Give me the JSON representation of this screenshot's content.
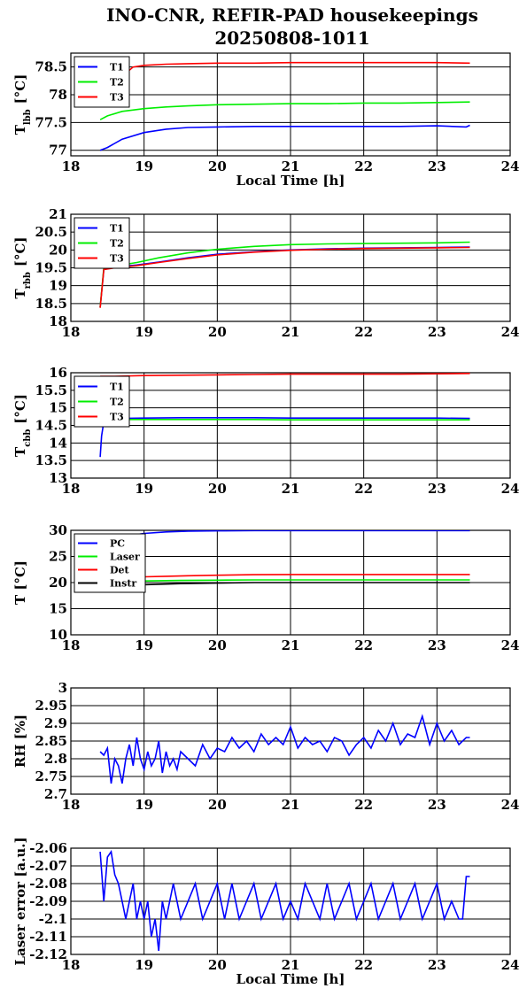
{
  "figure": {
    "title_line1": "INO-CNR, REFIR-PAD housekeepings",
    "title_line2": "20250808-1011"
  },
  "chart_data": [
    {
      "id": "tlbb",
      "type": "line",
      "title": "",
      "xlabel": "Local Time [h]",
      "ylabel": "T",
      "ylabel_sub": "lbb",
      "ylabel_unit": "[°C]",
      "xlim": [
        18,
        24
      ],
      "ylim": [
        76.9,
        78.75
      ],
      "xticks": [
        18,
        19,
        20,
        21,
        22,
        23,
        24
      ],
      "yticks": [
        77,
        77.5,
        78,
        78.5
      ],
      "ytick_labels": [
        "77",
        "77.5",
        "78",
        "78.5"
      ],
      "grid": true,
      "legend_position": "top-left",
      "series": [
        {
          "name": "T1",
          "color": "#0000ff",
          "x": [
            18.4,
            18.5,
            18.7,
            19.0,
            19.3,
            19.6,
            20.0,
            20.5,
            21.0,
            21.5,
            22.0,
            22.5,
            23.0,
            23.4,
            23.45
          ],
          "y": [
            77.0,
            77.05,
            77.2,
            77.32,
            77.38,
            77.41,
            77.42,
            77.43,
            77.43,
            77.43,
            77.43,
            77.43,
            77.44,
            77.42,
            77.45
          ]
        },
        {
          "name": "T2",
          "color": "#00ee00",
          "x": [
            18.4,
            18.5,
            18.7,
            19.0,
            19.3,
            19.6,
            20.0,
            20.5,
            21.0,
            21.5,
            22.0,
            22.5,
            23.0,
            23.45
          ],
          "y": [
            77.55,
            77.62,
            77.7,
            77.75,
            77.78,
            77.8,
            77.82,
            77.83,
            77.84,
            77.84,
            77.85,
            77.85,
            77.86,
            77.87
          ]
        },
        {
          "name": "T3",
          "color": "#ff0000",
          "x": [
            18.78,
            18.85,
            19.0,
            19.3,
            19.6,
            20.0,
            20.5,
            21.0,
            21.5,
            22.0,
            22.5,
            23.0,
            23.45
          ],
          "y": [
            78.42,
            78.5,
            78.53,
            78.55,
            78.56,
            78.57,
            78.57,
            78.58,
            78.58,
            78.58,
            78.58,
            78.58,
            78.57
          ]
        }
      ]
    },
    {
      "id": "trbb",
      "type": "line",
      "title": "",
      "xlabel": "",
      "ylabel": "T",
      "ylabel_sub": "rbb",
      "ylabel_unit": "[°C]",
      "xlim": [
        18,
        24
      ],
      "ylim": [
        18,
        21
      ],
      "xticks": [
        18,
        19,
        20,
        21,
        22,
        23,
        24
      ],
      "yticks": [
        18,
        18.5,
        19,
        19.5,
        20,
        20.5,
        21
      ],
      "ytick_labels": [
        "18",
        "18.5",
        "19",
        "19.5",
        "20",
        "20.5",
        "21"
      ],
      "grid": true,
      "legend_position": "top-left",
      "series": [
        {
          "name": "T1",
          "color": "#0000ff",
          "x": [
            18.4,
            18.45,
            18.6,
            18.9,
            19.2,
            19.6,
            20.0,
            20.5,
            21.0,
            21.5,
            22.0,
            22.5,
            23.0,
            23.45
          ],
          "y": [
            18.4,
            19.45,
            19.52,
            19.58,
            19.66,
            19.78,
            19.88,
            19.95,
            20.0,
            20.03,
            20.05,
            20.06,
            20.07,
            20.08
          ]
        },
        {
          "name": "T2",
          "color": "#00ee00",
          "x": [
            18.4,
            18.45,
            18.6,
            18.9,
            19.2,
            19.6,
            20.0,
            20.5,
            21.0,
            21.5,
            22.0,
            22.5,
            23.0,
            23.45
          ],
          "y": [
            18.4,
            19.5,
            19.55,
            19.65,
            19.78,
            19.92,
            20.02,
            20.1,
            20.15,
            20.17,
            20.18,
            20.19,
            20.2,
            20.22
          ]
        },
        {
          "name": "T3",
          "color": "#ff0000",
          "x": [
            18.4,
            18.45,
            18.6,
            18.9,
            19.2,
            19.6,
            20.0,
            20.5,
            21.0,
            21.5,
            22.0,
            22.5,
            23.0,
            23.45
          ],
          "y": [
            18.38,
            19.45,
            19.5,
            19.56,
            19.65,
            19.76,
            19.86,
            19.94,
            19.99,
            20.02,
            20.04,
            20.05,
            20.06,
            20.07
          ]
        }
      ]
    },
    {
      "id": "tcbb",
      "type": "line",
      "title": "",
      "xlabel": "",
      "ylabel": "T",
      "ylabel_sub": "cbb",
      "ylabel_unit": "[°C]",
      "xlim": [
        18,
        24
      ],
      "ylim": [
        13,
        16
      ],
      "xticks": [
        18,
        19,
        20,
        21,
        22,
        23,
        24
      ],
      "yticks": [
        13,
        13.5,
        14,
        14.5,
        15,
        15.5,
        16
      ],
      "ytick_labels": [
        "13",
        "13.5",
        "14",
        "14.5",
        "15",
        "15.5",
        "16"
      ],
      "grid": true,
      "legend_position": "top-left",
      "series": [
        {
          "name": "T1",
          "color": "#0000ff",
          "x": [
            18.4,
            18.42,
            18.45,
            18.5,
            18.7,
            19.0,
            19.5,
            20.0,
            20.5,
            21.0,
            21.5,
            22.0,
            22.5,
            23.0,
            23.45
          ],
          "y": [
            13.6,
            14.2,
            14.6,
            14.68,
            14.7,
            14.71,
            14.72,
            14.72,
            14.72,
            14.71,
            14.71,
            14.71,
            14.71,
            14.71,
            14.7
          ]
        },
        {
          "name": "T2",
          "color": "#00ee00",
          "x": [
            18.4,
            18.45,
            18.5,
            18.7,
            19.0,
            19.5,
            20.0,
            20.5,
            21.0,
            21.5,
            22.0,
            22.5,
            23.0,
            23.45
          ],
          "y": [
            14.5,
            14.64,
            14.66,
            14.67,
            14.67,
            14.67,
            14.67,
            14.67,
            14.66,
            14.66,
            14.66,
            14.66,
            14.66,
            14.66
          ]
        },
        {
          "name": "T3",
          "color": "#ff0000",
          "x": [
            18.4,
            18.6,
            19.0,
            19.5,
            20.0,
            20.5,
            21.0,
            21.5,
            22.0,
            22.5,
            23.0,
            23.45
          ],
          "y": [
            15.9,
            15.9,
            15.92,
            15.93,
            15.94,
            15.95,
            15.96,
            15.96,
            15.96,
            15.96,
            15.97,
            15.98
          ]
        }
      ]
    },
    {
      "id": "temps",
      "type": "line",
      "title": "",
      "xlabel": "",
      "ylabel": "T [°C]",
      "ylabel_sub": "",
      "ylabel_unit": "",
      "xlim": [
        18,
        24
      ],
      "ylim": [
        10,
        30
      ],
      "xticks": [
        18,
        19,
        20,
        21,
        22,
        23,
        24
      ],
      "yticks": [
        10,
        15,
        20,
        25,
        30
      ],
      "ytick_labels": [
        "10",
        "15",
        "20",
        "25",
        "30"
      ],
      "grid": true,
      "legend_position": "top-left",
      "series": [
        {
          "name": "PC",
          "color": "#0000ff",
          "x": [
            18.85,
            19.0,
            19.3,
            19.6,
            20.0,
            20.5,
            21.0,
            22.0,
            23.0,
            23.45
          ],
          "y": [
            29.1,
            29.4,
            29.7,
            29.85,
            29.9,
            29.95,
            29.95,
            29.95,
            29.95,
            29.95
          ]
        },
        {
          "name": "Laser",
          "color": "#00ee00",
          "x": [
            18.85,
            19.0,
            19.5,
            20.0,
            20.5,
            21.0,
            22.0,
            23.0,
            23.45
          ],
          "y": [
            20.2,
            20.3,
            20.4,
            20.45,
            20.5,
            20.5,
            20.5,
            20.5,
            20.5
          ]
        },
        {
          "name": "Det",
          "color": "#ff0000",
          "x": [
            18.85,
            19.0,
            19.3,
            19.6,
            20.0,
            20.5,
            21.0,
            22.0,
            23.0,
            23.45
          ],
          "y": [
            21.0,
            21.1,
            21.2,
            21.3,
            21.4,
            21.5,
            21.55,
            21.55,
            21.55,
            21.55
          ]
        },
        {
          "name": "Instr",
          "color": "#000000",
          "x": [
            18.85,
            19.0,
            19.5,
            20.0,
            20.5,
            21.0,
            22.0,
            23.0,
            23.45
          ],
          "y": [
            19.5,
            19.6,
            19.8,
            19.9,
            20.0,
            20.0,
            20.0,
            20.0,
            20.0
          ]
        }
      ]
    },
    {
      "id": "rh",
      "type": "line",
      "title": "",
      "xlabel": "",
      "ylabel": "RH [%]",
      "ylabel_sub": "",
      "ylabel_unit": "",
      "xlim": [
        18,
        24
      ],
      "ylim": [
        2.7,
        3.0
      ],
      "xticks": [
        18,
        19,
        20,
        21,
        22,
        23,
        24
      ],
      "yticks": [
        2.7,
        2.75,
        2.8,
        2.85,
        2.9,
        2.95,
        3.0
      ],
      "ytick_labels": [
        "2.7",
        "2.75",
        "2.8",
        "2.85",
        "2.9",
        "2.95",
        "3"
      ],
      "grid": true,
      "legend_position": "none",
      "series": [
        {
          "name": "",
          "color": "#0000ff",
          "x": [
            18.4,
            18.45,
            18.5,
            18.55,
            18.6,
            18.65,
            18.7,
            18.75,
            18.8,
            18.85,
            18.9,
            18.95,
            19.0,
            19.05,
            19.1,
            19.15,
            19.2,
            19.25,
            19.3,
            19.35,
            19.4,
            19.45,
            19.5,
            19.6,
            19.7,
            19.8,
            19.9,
            20.0,
            20.1,
            20.2,
            20.3,
            20.4,
            20.5,
            20.6,
            20.7,
            20.8,
            20.9,
            21.0,
            21.1,
            21.2,
            21.3,
            21.4,
            21.5,
            21.6,
            21.7,
            21.8,
            21.9,
            22.0,
            22.1,
            22.2,
            22.3,
            22.4,
            22.5,
            22.6,
            22.7,
            22.8,
            22.9,
            23.0,
            23.1,
            23.2,
            23.3,
            23.4,
            23.45
          ],
          "y": [
            2.82,
            2.81,
            2.83,
            2.73,
            2.8,
            2.78,
            2.73,
            2.8,
            2.84,
            2.78,
            2.86,
            2.8,
            2.77,
            2.82,
            2.78,
            2.8,
            2.85,
            2.76,
            2.82,
            2.78,
            2.8,
            2.77,
            2.82,
            2.8,
            2.78,
            2.84,
            2.8,
            2.83,
            2.82,
            2.86,
            2.83,
            2.85,
            2.82,
            2.87,
            2.84,
            2.86,
            2.84,
            2.89,
            2.83,
            2.86,
            2.84,
            2.85,
            2.82,
            2.86,
            2.85,
            2.81,
            2.84,
            2.86,
            2.83,
            2.88,
            2.85,
            2.9,
            2.84,
            2.87,
            2.86,
            2.92,
            2.84,
            2.9,
            2.85,
            2.88,
            2.84,
            2.86,
            2.86
          ]
        }
      ]
    },
    {
      "id": "laser",
      "type": "line",
      "title": "",
      "xlabel": "Local Time [h]",
      "ylabel": "Laser error [a.u.]",
      "ylabel_sub": "",
      "ylabel_unit": "",
      "xlim": [
        18,
        24
      ],
      "ylim": [
        -2.12,
        -2.06
      ],
      "xticks": [
        18,
        19,
        20,
        21,
        22,
        23,
        24
      ],
      "yticks": [
        -2.12,
        -2.11,
        -2.1,
        -2.09,
        -2.08,
        -2.07,
        -2.06
      ],
      "ytick_labels": [
        "-2.12",
        "-2.11",
        "-2.1",
        "-2.09",
        "-2.08",
        "-2.07",
        "-2.06"
      ],
      "grid": true,
      "legend_position": "none",
      "series": [
        {
          "name": "",
          "color": "#0000ff",
          "x": [
            18.4,
            18.45,
            18.5,
            18.55,
            18.6,
            18.65,
            18.7,
            18.75,
            18.8,
            18.85,
            18.9,
            18.95,
            19.0,
            19.05,
            19.1,
            19.15,
            19.2,
            19.25,
            19.3,
            19.4,
            19.5,
            19.6,
            19.7,
            19.8,
            19.9,
            20.0,
            20.1,
            20.2,
            20.3,
            20.4,
            20.5,
            20.6,
            20.7,
            20.8,
            20.9,
            21.0,
            21.1,
            21.2,
            21.3,
            21.4,
            21.5,
            21.6,
            21.7,
            21.8,
            21.9,
            22.0,
            22.1,
            22.2,
            22.3,
            22.4,
            22.5,
            22.6,
            22.7,
            22.8,
            22.9,
            23.0,
            23.1,
            23.2,
            23.3,
            23.35,
            23.4,
            23.45
          ],
          "y": [
            -2.062,
            -2.09,
            -2.065,
            -2.062,
            -2.075,
            -2.08,
            -2.09,
            -2.1,
            -2.09,
            -2.08,
            -2.1,
            -2.09,
            -2.1,
            -2.09,
            -2.11,
            -2.1,
            -2.118,
            -2.09,
            -2.1,
            -2.08,
            -2.1,
            -2.09,
            -2.08,
            -2.1,
            -2.09,
            -2.08,
            -2.1,
            -2.08,
            -2.1,
            -2.09,
            -2.08,
            -2.1,
            -2.09,
            -2.08,
            -2.1,
            -2.09,
            -2.1,
            -2.08,
            -2.09,
            -2.1,
            -2.08,
            -2.1,
            -2.09,
            -2.08,
            -2.1,
            -2.09,
            -2.08,
            -2.1,
            -2.09,
            -2.08,
            -2.1,
            -2.09,
            -2.08,
            -2.1,
            -2.09,
            -2.08,
            -2.1,
            -2.09,
            -2.1,
            -2.1,
            -2.076,
            -2.076
          ]
        }
      ]
    }
  ]
}
